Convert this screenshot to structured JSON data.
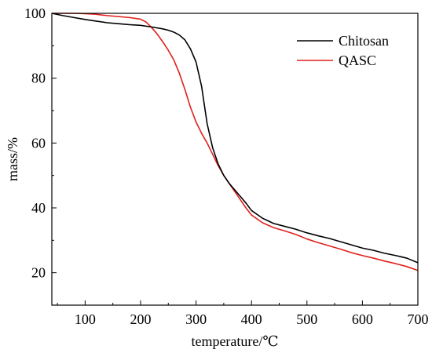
{
  "chart_data": {
    "type": "line",
    "title": "",
    "xlabel": "temperature/℃",
    "ylabel": "mass/%",
    "xlim": [
      40,
      700
    ],
    "ylim": [
      10,
      100
    ],
    "x_ticks": [
      100,
      200,
      300,
      400,
      500,
      600,
      700
    ],
    "y_ticks": [
      20,
      40,
      60,
      80,
      100
    ],
    "x_tick_labels": [
      "100",
      "200",
      "300",
      "400",
      "500",
      "600",
      "700"
    ],
    "y_tick_labels": [
      "20",
      "40",
      "60",
      "80",
      "100"
    ],
    "grid": false,
    "legend_position": "top-right",
    "series": [
      {
        "name": "Chitosan",
        "color": "#000000",
        "x": [
          40,
          60,
          80,
          100,
          120,
          140,
          160,
          180,
          200,
          220,
          240,
          250,
          260,
          270,
          280,
          290,
          300,
          310,
          320,
          330,
          340,
          350,
          360,
          370,
          380,
          390,
          400,
          420,
          440,
          460,
          480,
          500,
          520,
          540,
          560,
          580,
          600,
          620,
          640,
          660,
          680,
          700
        ],
        "y": [
          100,
          99.3,
          98.7,
          98.1,
          97.6,
          97.1,
          96.8,
          96.5,
          96.3,
          95.8,
          95.2,
          94.8,
          94.2,
          93.3,
          91.8,
          89.0,
          85.0,
          77.5,
          66.0,
          58.5,
          53.5,
          50.0,
          47.5,
          45.5,
          43.5,
          41.5,
          39.2,
          36.8,
          35.2,
          34.3,
          33.4,
          32.3,
          31.4,
          30.6,
          29.6,
          28.6,
          27.6,
          26.9,
          26.0,
          25.3,
          24.5,
          23.1
        ]
      },
      {
        "name": "QASC",
        "color": "#e0201b",
        "x": [
          40,
          60,
          80,
          100,
          120,
          140,
          160,
          180,
          200,
          210,
          220,
          230,
          240,
          250,
          260,
          270,
          280,
          290,
          300,
          310,
          320,
          330,
          340,
          350,
          360,
          370,
          380,
          390,
          400,
          420,
          440,
          460,
          480,
          500,
          520,
          540,
          560,
          580,
          600,
          620,
          640,
          660,
          680,
          700
        ],
        "y": [
          100,
          100,
          100,
          99.9,
          99.7,
          99.3,
          99.0,
          98.7,
          98.2,
          97.3,
          95.6,
          93.6,
          91.2,
          88.6,
          85.6,
          81.5,
          76.5,
          71.0,
          66.5,
          63.0,
          60.0,
          56.5,
          53.0,
          50.0,
          47.5,
          45.0,
          42.5,
          40.0,
          37.8,
          35.4,
          33.9,
          32.9,
          31.8,
          30.4,
          29.3,
          28.3,
          27.3,
          26.2,
          25.3,
          24.5,
          23.6,
          22.8,
          21.9,
          20.7
        ]
      }
    ]
  }
}
